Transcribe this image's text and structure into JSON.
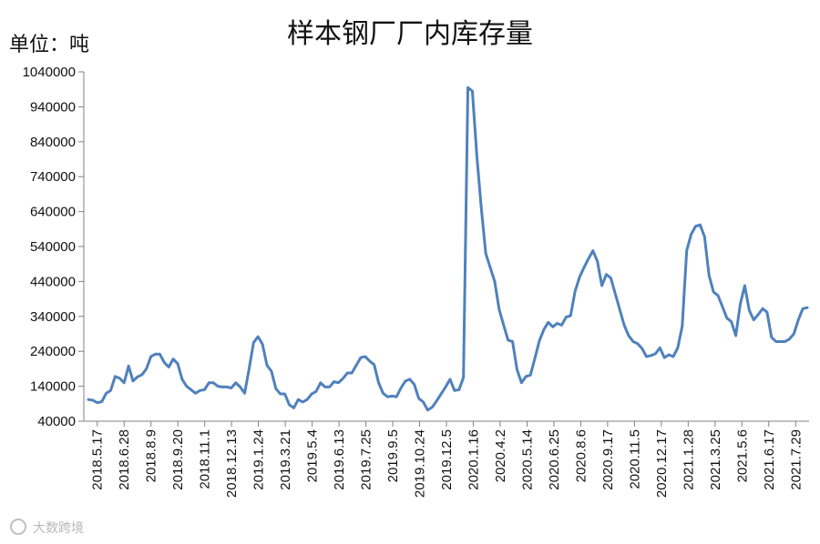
{
  "chart_data": {
    "type": "line",
    "title": "样本钢厂厂内库存量",
    "unit_label": "单位：吨",
    "ylim": [
      40000,
      1040000
    ],
    "yticks": [
      40000,
      140000,
      240000,
      340000,
      440000,
      540000,
      640000,
      740000,
      840000,
      940000,
      1040000
    ],
    "ytick_labels": [
      "40000",
      "140000",
      "240000",
      "340000",
      "440000",
      "540000",
      "640000",
      "740000",
      "840000",
      "940000",
      "1040000"
    ],
    "grid": false,
    "legend": "none",
    "color": "#4f81bd",
    "xtick_labels": [
      "2018.5.17",
      "2018.6.28",
      "2018.8.9",
      "2018.9.20",
      "2018.11.1",
      "2018.12.13",
      "2019.1.24",
      "2019.3.21",
      "2019.5.4",
      "2019.6.13",
      "2019.7.25",
      "2019.9.5",
      "2019.10.24",
      "2019.12.5",
      "2020.1.16",
      "2020.4.2",
      "2020.5.14",
      "2020.6.25",
      "2020.8.6",
      "2020.9.17",
      "2020.11.5",
      "2020.12.17",
      "2021.1.28",
      "2021.3.25",
      "2021.5.6",
      "2021.6.17",
      "2021.7.29"
    ],
    "values": [
      102000,
      100000,
      93000,
      96000,
      120000,
      128000,
      168000,
      163000,
      150000,
      198000,
      155000,
      167000,
      173000,
      190000,
      225000,
      232000,
      232000,
      208000,
      195000,
      218000,
      205000,
      160000,
      140000,
      130000,
      120000,
      128000,
      130000,
      150000,
      150000,
      140000,
      138000,
      138000,
      135000,
      150000,
      138000,
      120000,
      190000,
      265000,
      282000,
      260000,
      200000,
      183000,
      133000,
      118000,
      118000,
      87000,
      78000,
      102000,
      95000,
      102000,
      118000,
      125000,
      150000,
      138000,
      138000,
      153000,
      150000,
      162000,
      178000,
      178000,
      200000,
      222000,
      225000,
      212000,
      202000,
      150000,
      120000,
      110000,
      112000,
      110000,
      135000,
      155000,
      160000,
      145000,
      105000,
      95000,
      72000,
      80000,
      98000,
      118000,
      138000,
      160000,
      128000,
      130000,
      165000,
      995000,
      985000,
      800000,
      650000,
      520000,
      480000,
      440000,
      360000,
      315000,
      272000,
      268000,
      188000,
      150000,
      168000,
      172000,
      220000,
      270000,
      302000,
      323000,
      310000,
      320000,
      315000,
      338000,
      342000,
      412000,
      452000,
      480000,
      505000,
      528000,
      498000,
      428000,
      460000,
      450000,
      405000,
      360000,
      315000,
      285000,
      268000,
      262000,
      248000,
      225000,
      228000,
      233000,
      250000,
      222000,
      230000,
      225000,
      250000,
      312000,
      528000,
      575000,
      598000,
      602000,
      568000,
      458000,
      410000,
      400000,
      368000,
      335000,
      325000,
      285000,
      375000,
      428000,
      358000,
      330000,
      345000,
      362000,
      352000,
      280000,
      268000,
      268000,
      268000,
      275000,
      290000,
      330000,
      362000,
      365000
    ],
    "watermark": "大数跨境"
  }
}
